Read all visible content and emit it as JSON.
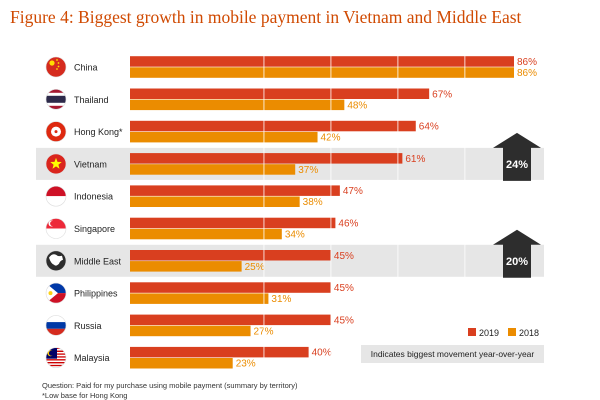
{
  "title": "Figure 4: Biggest growth in mobile payment in Vietnam and Middle East",
  "colors": {
    "s2019": "#d93f1f",
    "s2018": "#eb8c00",
    "highlight": "#e6e6e6",
    "arrow": "#2d2d2d"
  },
  "chart_data": {
    "type": "bar",
    "orientation": "horizontal",
    "categories": [
      "China",
      "Thailand",
      "Hong Kong*",
      "Vietnam",
      "Indonesia",
      "Singapore",
      "Middle East",
      "Philippines",
      "Russia",
      "Malaysia"
    ],
    "flag_icons": [
      "china-flag-icon",
      "thailand-flag-icon",
      "hong-kong-flag-icon",
      "vietnam-flag-icon",
      "indonesia-flag-icon",
      "singapore-flag-icon",
      "middle-east-globe-icon",
      "philippines-flag-icon",
      "russia-flag-icon",
      "malaysia-flag-icon"
    ],
    "series": [
      {
        "name": "2019",
        "values": [
          86,
          67,
          64,
          61,
          47,
          46,
          45,
          45,
          45,
          40
        ],
        "labels": [
          "86%",
          "67%",
          "64%",
          "61%",
          "47%",
          "46%",
          "45%",
          "45%",
          "45%",
          "40%"
        ]
      },
      {
        "name": "2018",
        "values": [
          86,
          48,
          42,
          37,
          38,
          34,
          25,
          31,
          27,
          23
        ],
        "labels": [
          "86%",
          "48%",
          "42%",
          "37%",
          "38%",
          "34%",
          "25%",
          "31%",
          "27%",
          "23%"
        ]
      }
    ],
    "xlim": [
      0,
      86
    ],
    "highlighted": [
      "Vietnam",
      "Middle East"
    ],
    "callouts": [
      {
        "category": "Vietnam",
        "label": "24%"
      },
      {
        "category": "Middle East",
        "label": "20%"
      }
    ],
    "legend": {
      "position": "bottom-right",
      "items": [
        "2019",
        "2018"
      ]
    },
    "legend_note": "Indicates biggest movement year-over-year"
  },
  "footnotes": [
    "Question: Paid for my purchase using mobile payment (summary by territory)",
    "*Low base for Hong Kong"
  ]
}
